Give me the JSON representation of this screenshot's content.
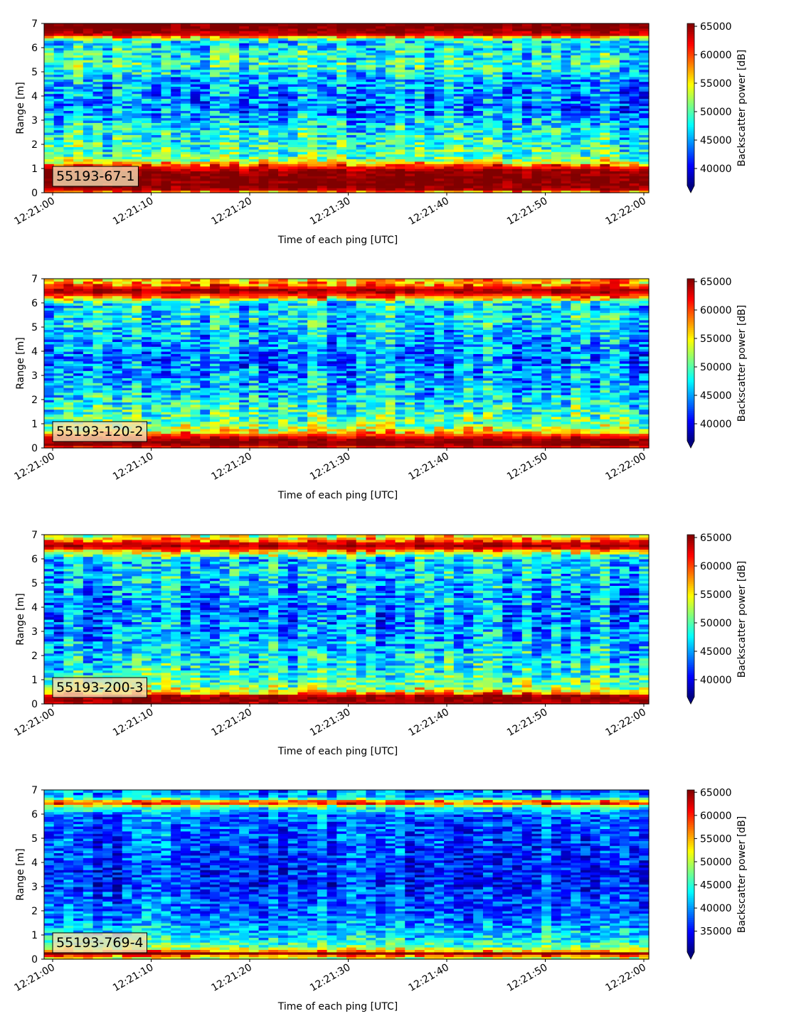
{
  "chart_data": [
    {
      "type": "heatmap",
      "label": "55193-67-1",
      "xlabel": "Time of each ping [UTC]",
      "ylabel": "Range [m]",
      "colorbar_label": "Backscatter power [dB]",
      "xlim": [
        "12:21:00",
        "12:22:00"
      ],
      "x_ticks": [
        "12:21:00",
        "12:21:10",
        "12:21:20",
        "12:21:30",
        "12:21:40",
        "12:21:50",
        "12:22:00"
      ],
      "ylim": [
        0,
        7
      ],
      "y_ticks": [
        0,
        1,
        2,
        3,
        4,
        5,
        6,
        7
      ],
      "clim": [
        37000,
        65500
      ],
      "colorbar_ticks": [
        40000,
        45000,
        50000,
        55000,
        60000,
        65000
      ],
      "colorbar_extend": "min",
      "colormap": "jet",
      "profile": {
        "range_m": [
          0.0,
          0.15,
          0.3,
          0.6,
          0.9,
          1.1,
          1.3,
          1.5,
          2.0,
          2.5,
          3.0,
          3.5,
          4.0,
          4.5,
          5.0,
          5.3,
          5.6,
          6.0,
          6.3,
          6.55,
          6.8,
          7.0
        ],
        "power": [
          55000,
          64000,
          65500,
          65500,
          65000,
          61000,
          54000,
          50000,
          49000,
          48000,
          46000,
          44000,
          44500,
          45000,
          47000,
          49500,
          48000,
          47500,
          47000,
          63000,
          65500,
          65500
        ]
      }
    },
    {
      "type": "heatmap",
      "label": "55193-120-2",
      "xlabel": "Time of each ping [UTC]",
      "ylabel": "Range [m]",
      "colorbar_label": "Backscatter power [dB]",
      "xlim": [
        "12:21:00",
        "12:22:00"
      ],
      "x_ticks": [
        "12:21:00",
        "12:21:10",
        "12:21:20",
        "12:21:30",
        "12:21:40",
        "12:21:50",
        "12:22:00"
      ],
      "ylim": [
        0,
        7
      ],
      "y_ticks": [
        0,
        1,
        2,
        3,
        4,
        5,
        6,
        7
      ],
      "clim": [
        37000,
        65500
      ],
      "colorbar_ticks": [
        40000,
        45000,
        50000,
        55000,
        60000,
        65000
      ],
      "colorbar_extend": "min",
      "colormap": "jet",
      "profile": {
        "range_m": [
          0.0,
          0.15,
          0.3,
          0.5,
          0.7,
          0.9,
          1.2,
          1.6,
          2.0,
          2.5,
          3.0,
          3.5,
          4.0,
          4.5,
          5.0,
          5.5,
          6.0,
          6.3,
          6.5,
          6.8,
          7.0
        ],
        "power": [
          60000,
          65500,
          65500,
          62000,
          55000,
          52000,
          50000,
          49000,
          48000,
          46000,
          45000,
          44000,
          44500,
          45500,
          47000,
          47500,
          47000,
          60000,
          65500,
          58000,
          56000
        ]
      }
    },
    {
      "type": "heatmap",
      "label": "55193-200-3",
      "xlabel": "Time of each ping [UTC]",
      "ylabel": "Range [m]",
      "colorbar_label": "Backscatter power [dB]",
      "xlim": [
        "12:21:00",
        "12:22:00"
      ],
      "x_ticks": [
        "12:21:00",
        "12:21:10",
        "12:21:20",
        "12:21:30",
        "12:21:40",
        "12:21:50",
        "12:22:00"
      ],
      "ylim": [
        0,
        7
      ],
      "y_ticks": [
        0,
        1,
        2,
        3,
        4,
        5,
        6,
        7
      ],
      "clim": [
        37000,
        65500
      ],
      "colorbar_ticks": [
        40000,
        45000,
        50000,
        55000,
        60000,
        65000
      ],
      "colorbar_extend": "min",
      "colormap": "jet",
      "profile": {
        "range_m": [
          0.0,
          0.2,
          0.35,
          0.5,
          0.7,
          1.0,
          1.5,
          2.0,
          2.5,
          3.0,
          3.5,
          4.0,
          4.5,
          5.0,
          5.5,
          6.0,
          6.3,
          6.5,
          6.7,
          6.85,
          7.0
        ],
        "power": [
          63000,
          65500,
          64000,
          55000,
          52000,
          50000,
          48000,
          47000,
          46000,
          45000,
          44500,
          44500,
          45000,
          46000,
          46500,
          46000,
          55000,
          65000,
          62000,
          56000,
          53000
        ]
      }
    },
    {
      "type": "heatmap",
      "label": "55193-769-4",
      "xlabel": "Time of each ping [UTC]",
      "ylabel": "Range [m]",
      "colorbar_label": "Backscatter power [dB]",
      "xlim": [
        "12:21:00",
        "12:22:00"
      ],
      "x_ticks": [
        "12:21:00",
        "12:21:10",
        "12:21:20",
        "12:21:30",
        "12:21:40",
        "12:21:50",
        "12:22:00"
      ],
      "ylim": [
        0,
        7
      ],
      "y_ticks": [
        0,
        1,
        2,
        3,
        4,
        5,
        6,
        7
      ],
      "clim": [
        30500,
        65500
      ],
      "colorbar_ticks": [
        35000,
        40000,
        45000,
        50000,
        55000,
        60000,
        65000
      ],
      "colorbar_extend": "min",
      "colormap": "jet",
      "profile": {
        "range_m": [
          0.0,
          0.15,
          0.25,
          0.35,
          0.5,
          0.8,
          1.2,
          1.6,
          2.0,
          2.5,
          3.0,
          3.5,
          4.0,
          4.5,
          5.0,
          5.5,
          6.0,
          6.3,
          6.5,
          6.6,
          6.8,
          7.0
        ],
        "power": [
          48000,
          58000,
          65500,
          56000,
          48000,
          44000,
          42000,
          40000,
          39000,
          38000,
          37000,
          36500,
          37000,
          37500,
          38000,
          38500,
          39000,
          45000,
          65000,
          48000,
          40000,
          40000
        ]
      }
    }
  ]
}
